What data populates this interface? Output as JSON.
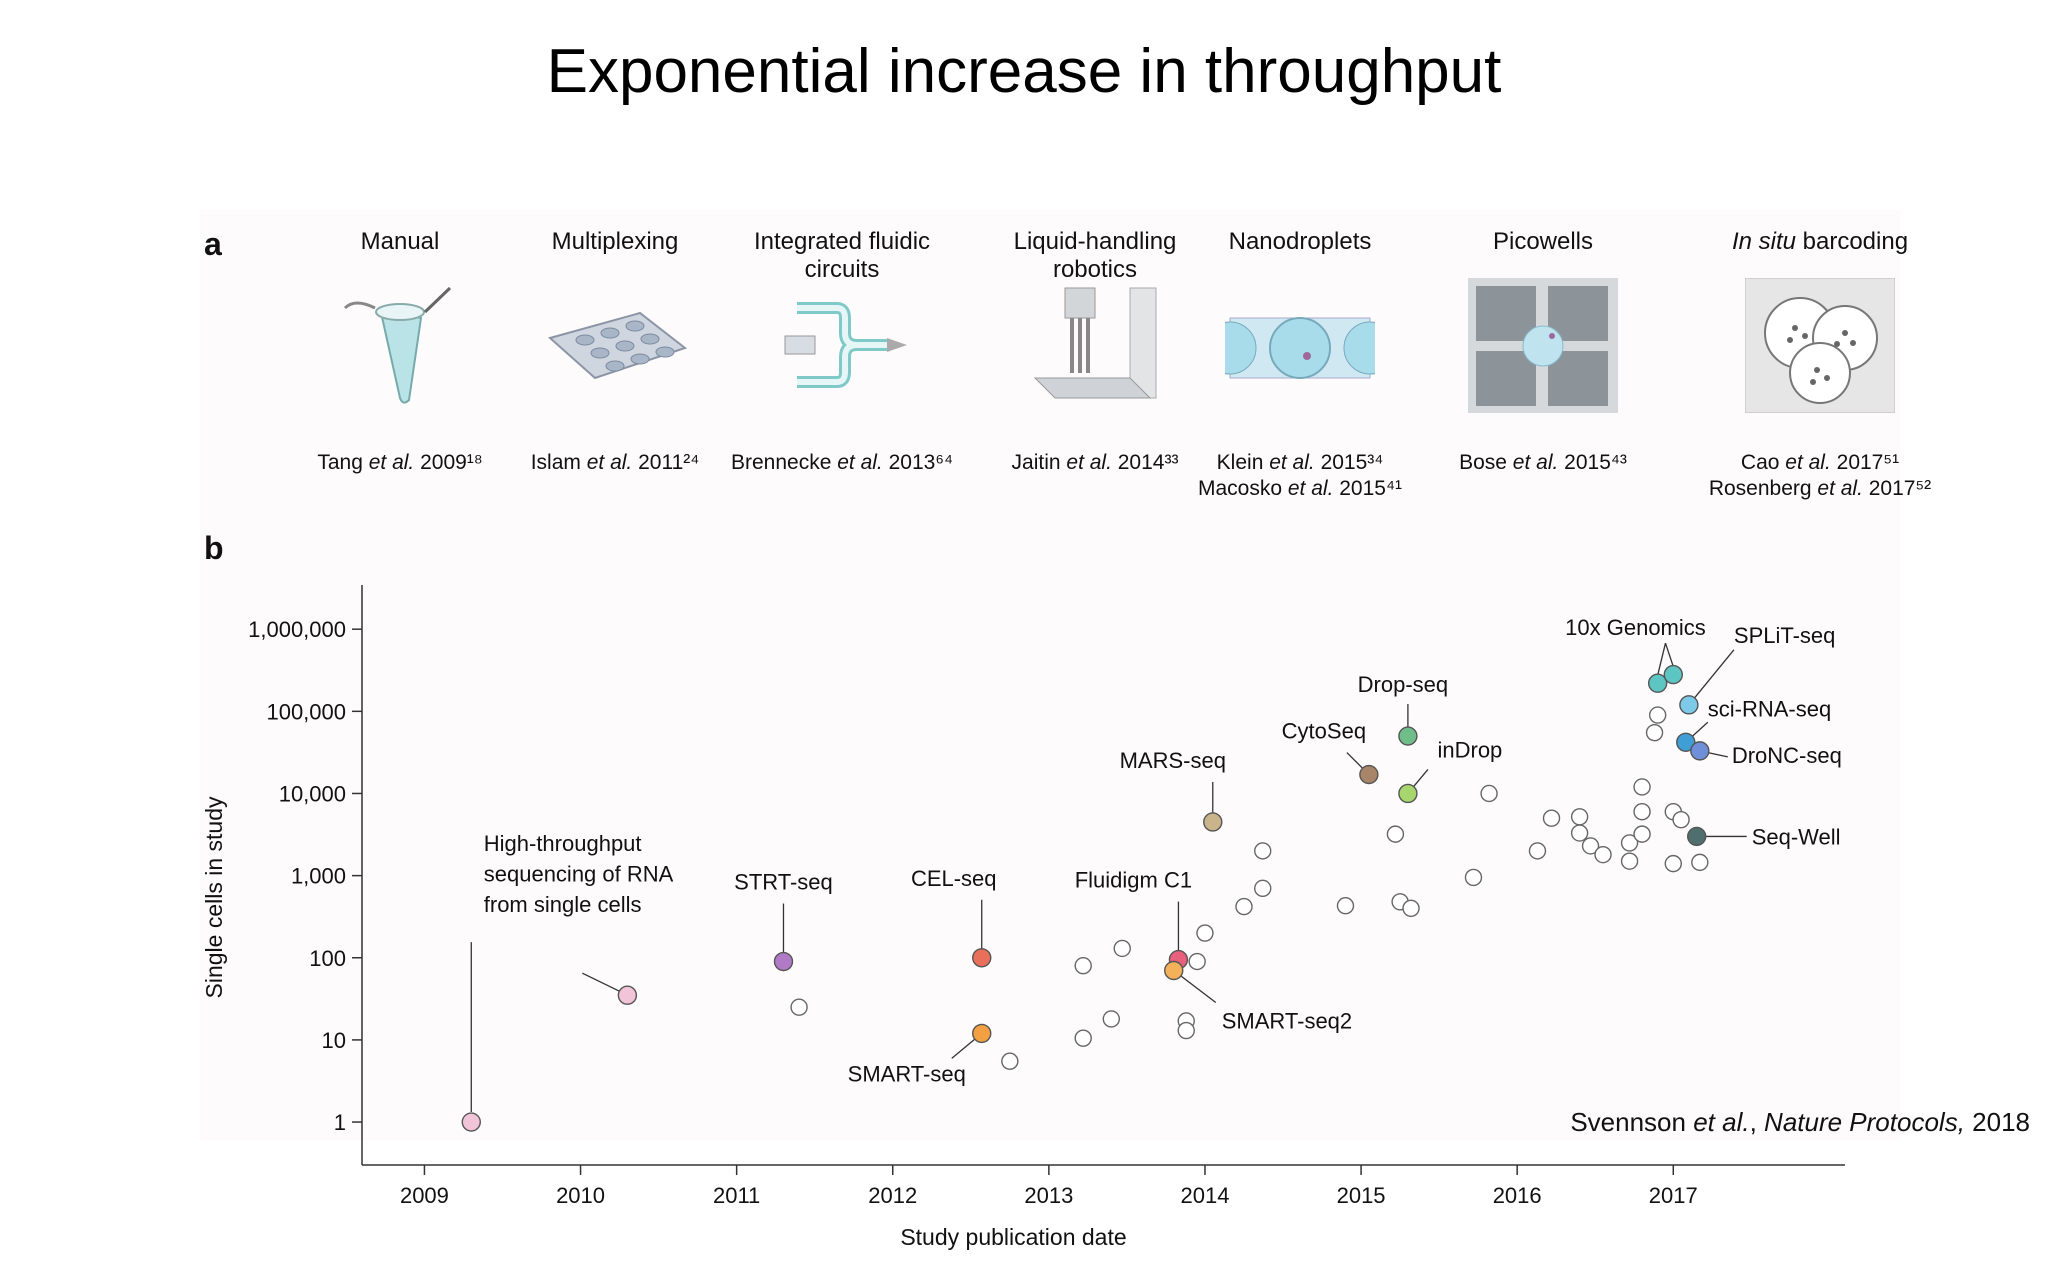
{
  "slide_title": "Exponential increase in throughput",
  "panel_a": {
    "letter": "a",
    "methods": [
      {
        "name": "Manual",
        "refs": [
          "Tang et al. 2009¹⁸"
        ],
        "icon": "tube-icon"
      },
      {
        "name": "Multiplexing",
        "refs": [
          "Islam et al. 2011²⁴"
        ],
        "icon": "plate-icon"
      },
      {
        "name": "Integrated fluidic circuits",
        "refs": [
          "Brennecke et al. 2013⁶⁴"
        ],
        "icon": "fluidic-circuit-icon"
      },
      {
        "name": "Liquid-handling robotics",
        "refs": [
          "Jaitin et al. 2014³³"
        ],
        "icon": "robot-icon"
      },
      {
        "name": "Nanodroplets",
        "refs": [
          "Klein et al. 2015³⁴",
          "Macosko et al. 2015⁴¹"
        ],
        "icon": "droplet-icon"
      },
      {
        "name": "Picowells",
        "refs": [
          "Bose et al. 2015⁴³"
        ],
        "icon": "picowell-icon"
      },
      {
        "name": "In situ barcoding",
        "refs": [
          "Cao et al. 2017⁵¹",
          "Rosenberg et al. 2017⁵²"
        ],
        "icon": "barcoding-icon"
      }
    ]
  },
  "panel_b": {
    "letter": "b"
  },
  "chart_data": {
    "type": "scatter",
    "title": "",
    "xlabel": "Study publication date",
    "ylabel": "Single cells in study",
    "xlim": [
      2008.6,
      2018.1
    ],
    "ylim": [
      0.3,
      3000000
    ],
    "y_scale": "log",
    "x_ticks": [
      2009,
      2010,
      2011,
      2012,
      2013,
      2014,
      2015,
      2016,
      2017
    ],
    "y_ticks": [
      {
        "value": 1,
        "label": "1"
      },
      {
        "value": 10,
        "label": "10"
      },
      {
        "value": 100,
        "label": "100"
      },
      {
        "value": 1000,
        "label": "1,000"
      },
      {
        "value": 10000,
        "label": "10,000"
      },
      {
        "value": 100000,
        "label": "100,000"
      },
      {
        "value": 1000000,
        "label": "1,000,000"
      }
    ],
    "grid": false,
    "labeled_points": [
      {
        "label": "High-throughput sequencing of RNA from single cells",
        "x": 2009.3,
        "y": 1,
        "color": "#f2c4d8"
      },
      {
        "label": "",
        "x": 2010.3,
        "y": 35,
        "color": "#f2c4d8"
      },
      {
        "label": "STRT-seq",
        "x": 2011.3,
        "y": 90,
        "color": "#b07ac6"
      },
      {
        "label": "CEL-seq",
        "x": 2012.57,
        "y": 100,
        "color": "#e8705a"
      },
      {
        "label": "SMART-seq",
        "x": 2012.57,
        "y": 12,
        "color": "#f2a042"
      },
      {
        "label": "Fluidigm C1",
        "x": 2013.83,
        "y": 95,
        "color": "#e8607c"
      },
      {
        "label": "SMART-seq2",
        "x": 2013.8,
        "y": 70,
        "color": "#f5b05a"
      },
      {
        "label": "MARS-seq",
        "x": 2014.05,
        "y": 4500,
        "color": "#c9b48c"
      },
      {
        "label": "CytoSeq",
        "x": 2015.05,
        "y": 17000,
        "color": "#a88468"
      },
      {
        "label": "Drop-seq",
        "x": 2015.3,
        "y": 50000,
        "color": "#6fbe8a"
      },
      {
        "label": "inDrop",
        "x": 2015.3,
        "y": 10000,
        "color": "#a8d66e"
      },
      {
        "label": "10x Genomics",
        "x": 2016.9,
        "y": 220000,
        "color": "#5ec6c2"
      },
      {
        "label": "10x Genomics",
        "x": 2017.0,
        "y": 280000,
        "color": "#5ec6c2"
      },
      {
        "label": "SPLiT-seq",
        "x": 2017.1,
        "y": 120000,
        "color": "#7cc9e8"
      },
      {
        "label": "sci-RNA-seq",
        "x": 2017.08,
        "y": 42000,
        "color": "#3f9ed6"
      },
      {
        "label": "DroNC-seq",
        "x": 2017.17,
        "y": 33000,
        "color": "#6f8fd8"
      },
      {
        "label": "Seq-Well",
        "x": 2017.15,
        "y": 3000,
        "color": "#4f6e6e"
      }
    ],
    "unlabeled_points": [
      [
        2011.4,
        25
      ],
      [
        2012.75,
        5.5
      ],
      [
        2013.22,
        80
      ],
      [
        2013.22,
        10.5
      ],
      [
        2013.4,
        18
      ],
      [
        2013.47,
        130
      ],
      [
        2013.88,
        17
      ],
      [
        2013.88,
        13
      ],
      [
        2013.95,
        90
      ],
      [
        2014.0,
        200
      ],
      [
        2014.25,
        420
      ],
      [
        2014.37,
        700
      ],
      [
        2014.37,
        2000
      ],
      [
        2014.9,
        430
      ],
      [
        2015.22,
        3200
      ],
      [
        2015.25,
        480
      ],
      [
        2015.32,
        400
      ],
      [
        2015.72,
        950
      ],
      [
        2015.82,
        10000
      ],
      [
        2016.13,
        2000
      ],
      [
        2016.22,
        5000
      ],
      [
        2016.4,
        5200
      ],
      [
        2016.4,
        3300
      ],
      [
        2016.47,
        2300
      ],
      [
        2016.55,
        1800
      ],
      [
        2016.72,
        1500
      ],
      [
        2016.72,
        2500
      ],
      [
        2016.8,
        12000
      ],
      [
        2016.8,
        6000
      ],
      [
        2016.8,
        3200
      ],
      [
        2016.88,
        55000
      ],
      [
        2016.9,
        90000
      ],
      [
        2017.0,
        6000
      ],
      [
        2017.0,
        1400
      ],
      [
        2017.05,
        4800
      ],
      [
        2017.17,
        1450
      ]
    ],
    "annotations": [
      {
        "text": "High-throughput",
        "x": 2009.38,
        "y": 2000
      },
      {
        "text": "sequencing of RNA",
        "x": 2009.38,
        "y": 850
      },
      {
        "text": "from single cells",
        "x": 2009.38,
        "y": 360
      }
    ]
  },
  "citation": {
    "authors": "Svennson",
    "etal": "et al.",
    "journal": "Nature Protocols,",
    "year": "2018"
  }
}
